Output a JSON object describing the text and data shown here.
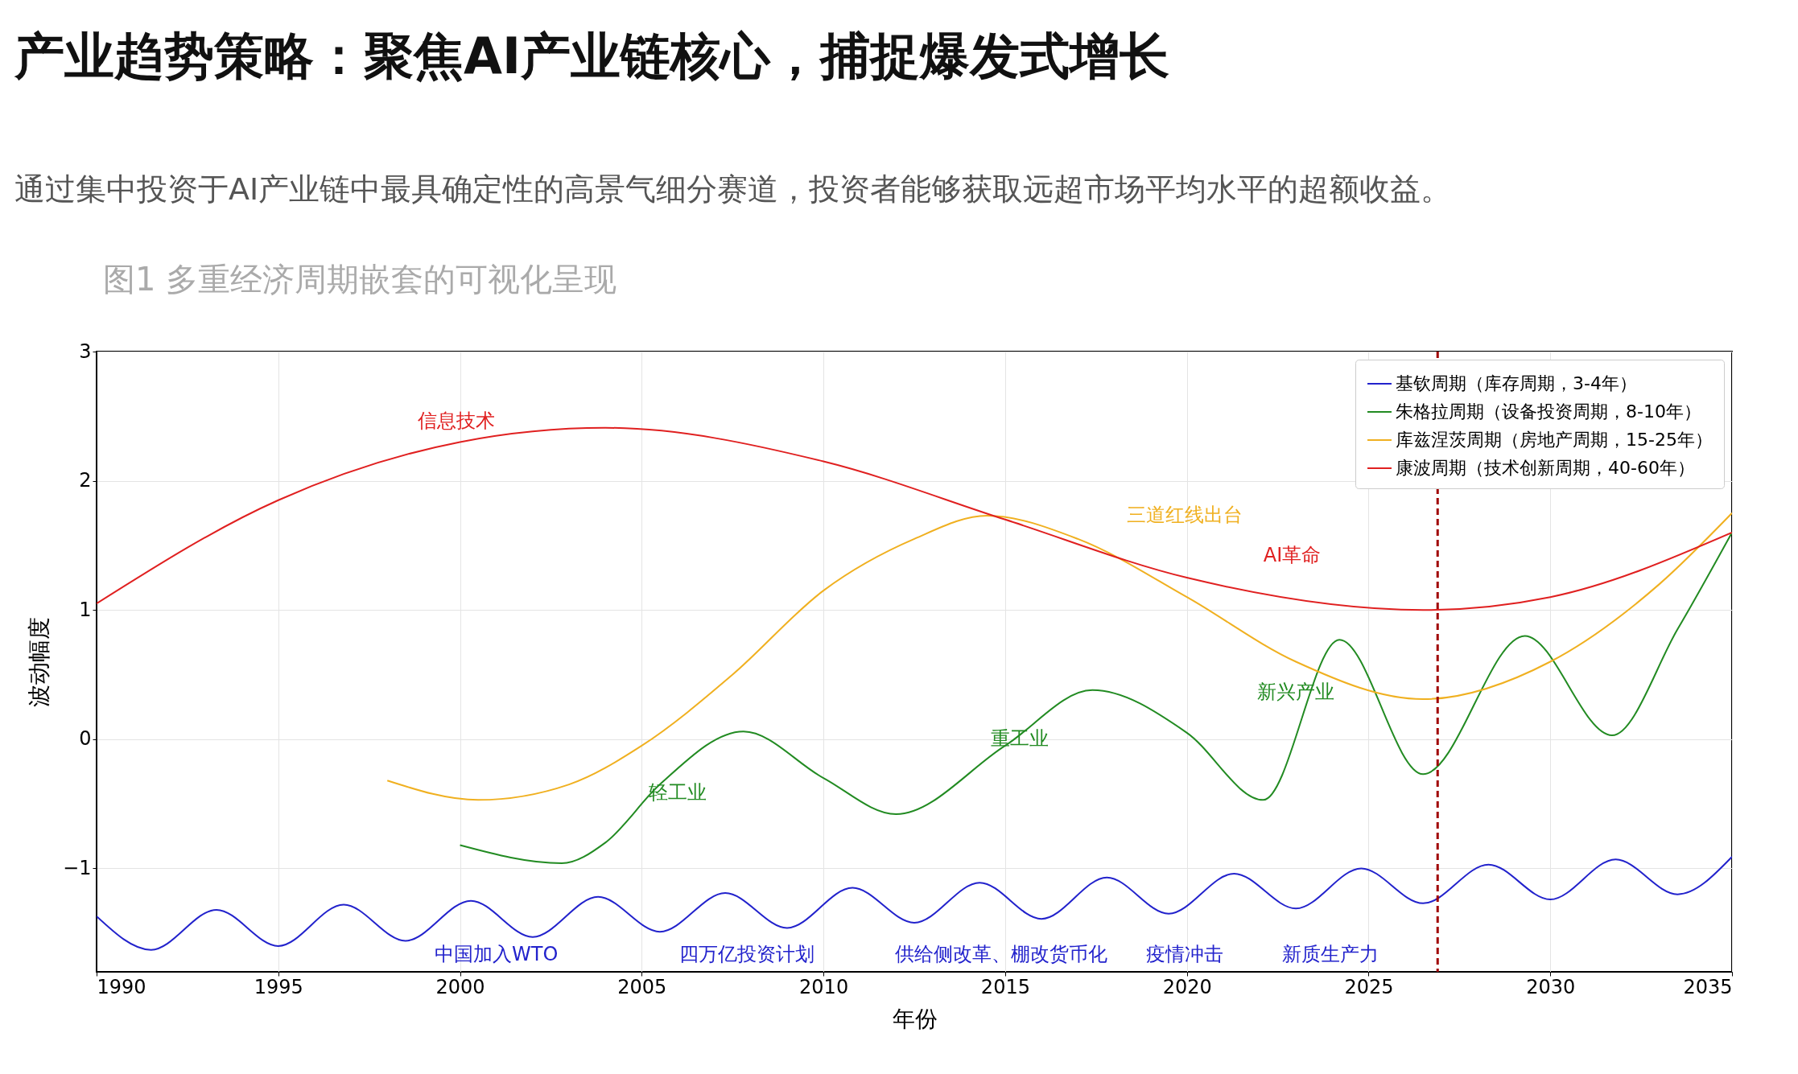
{
  "chart_data": {
    "type": "line",
    "title": "产业趋势策略：聚焦AI产业链核心，捕捉爆发式增长",
    "subtitle": "通过集中投资于AI产业链中最具确定性的高景气细分赛道，投资者能够获取远超市场平均水平的超额收益。",
    "xlabel": "年份",
    "ylabel": "波动幅度",
    "xlim": [
      1990,
      2035
    ],
    "xticks": [
      1990,
      1995,
      2000,
      2005,
      2010,
      2015,
      2020,
      2025,
      2030,
      2035
    ],
    "ylim": [
      -1.8,
      3
    ],
    "yticks": [
      -1,
      0,
      1,
      2,
      3
    ],
    "grid": true,
    "legend": "top right",
    "line_style": "solid",
    "marker": "none",
    "series": [
      {
        "name": "基钦周期（库存周期，3-4年）",
        "color": "#2222cc",
        "x": [
          1990,
          1991.5,
          1993.3,
          1995,
          1996.8,
          1998.5,
          2000.3,
          2002,
          2003.8,
          2005.5,
          2007.3,
          2009,
          2010.8,
          2012.5,
          2014.3,
          2016,
          2017.8,
          2019.5,
          2021.3,
          2023,
          2024.8,
          2026.5,
          2028.3,
          2030,
          2031.8,
          2033.5,
          2035
        ],
        "values": [
          -1.37,
          -1.63,
          -1.32,
          -1.6,
          -1.28,
          -1.56,
          -1.25,
          -1.53,
          -1.22,
          -1.49,
          -1.19,
          -1.46,
          -1.15,
          -1.42,
          -1.11,
          -1.39,
          -1.07,
          -1.35,
          -1.04,
          -1.31,
          -1.0,
          -1.27,
          -0.97,
          -1.24,
          -0.93,
          -1.2,
          -0.91
        ]
      },
      {
        "name": "朱格拉周期（设备投资周期，8-10年）",
        "color": "#228b22",
        "x": [
          2000,
          2002.8,
          2004,
          2005.5,
          2007.8,
          2010,
          2012,
          2015,
          2017.4,
          2020,
          2022.1,
          2024.2,
          2026.5,
          2029.3,
          2031.7,
          2033.5,
          2035
        ],
        "values": [
          -0.82,
          -0.96,
          -0.8,
          -0.35,
          0.06,
          -0.3,
          -0.58,
          -0.05,
          0.38,
          0.05,
          -0.47,
          0.77,
          -0.27,
          0.8,
          0.03,
          0.85,
          1.6
        ]
      },
      {
        "name": "库兹涅茨周期（房地产周期，15-25年）",
        "color": "#f0b020",
        "x": [
          1998,
          2000.5,
          2003,
          2005,
          2007.5,
          2010,
          2012.5,
          2014.5,
          2017,
          2020,
          2023,
          2026.5,
          2030,
          2033,
          2035
        ],
        "values": [
          -0.32,
          -0.47,
          -0.35,
          -0.05,
          0.5,
          1.15,
          1.55,
          1.73,
          1.55,
          1.1,
          0.6,
          0.31,
          0.6,
          1.2,
          1.75
        ]
      },
      {
        "name": "康波周期（技术创新周期，40-60年）",
        "color": "#e02020",
        "x": [
          1990,
          1995,
          2000,
          2004,
          2010,
          2015,
          2020,
          2026.5,
          2030,
          2035
        ],
        "values": [
          1.05,
          1.85,
          2.3,
          2.41,
          2.15,
          1.7,
          1.25,
          1.0,
          1.1,
          1.6
        ]
      }
    ],
    "ref_lines": [
      {
        "axis": "x",
        "value": 2026.9,
        "color": "#a00000",
        "line_style": "dashed"
      }
    ],
    "annotations": [
      "图1 多重经济周期嵌套的可视化呈现",
      "信息技术",
      "三道红线出台",
      "AI革命",
      "新兴产业",
      "重工业",
      "轻工业",
      "中国加入WTO",
      "四万亿投资计划",
      "供给侧改革、棚改货币化",
      "疫情冲击",
      "新质生产力"
    ]
  }
}
